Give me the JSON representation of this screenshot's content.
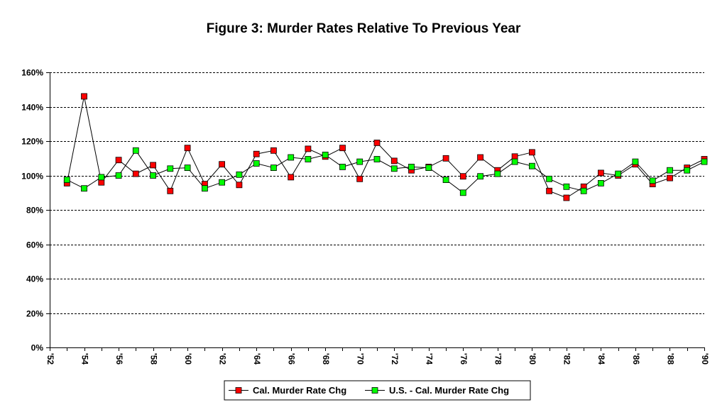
{
  "chart_data": {
    "type": "line",
    "title": "Figure 3: Murder Rates Relative To Previous Year",
    "xlabel": "",
    "ylabel": "",
    "x": [
      1953,
      1954,
      1955,
      1956,
      1957,
      1958,
      1959,
      1960,
      1961,
      1962,
      1963,
      1964,
      1965,
      1966,
      1967,
      1968,
      1969,
      1970,
      1971,
      1972,
      1973,
      1974,
      1975,
      1976,
      1977,
      1978,
      1979,
      1980,
      1981,
      1982,
      1983,
      1984,
      1985,
      1986,
      1987,
      1988,
      1989,
      1990
    ],
    "x_tick_values": [
      1952,
      1954,
      1956,
      1958,
      1960,
      1962,
      1964,
      1966,
      1968,
      1970,
      1972,
      1974,
      1976,
      1978,
      1980,
      1982,
      1984,
      1986,
      1988,
      1990
    ],
    "x_tick_labels": [
      "'52",
      "'54",
      "'56",
      "'58",
      "'60",
      "'62",
      "'64",
      "'66",
      "'68",
      "'70",
      "'72",
      "'74",
      "'76",
      "'78",
      "'80",
      "'82",
      "'84",
      "'86",
      "'88",
      "'90"
    ],
    "xlim": [
      1952,
      1990
    ],
    "ylim": [
      0,
      160
    ],
    "y_ticks": [
      0,
      20,
      40,
      60,
      80,
      100,
      120,
      140,
      160
    ],
    "y_tick_labels": [
      "0%",
      "20%",
      "40%",
      "60%",
      "80%",
      "100%",
      "120%",
      "140%",
      "160%"
    ],
    "grid": "horizontal-dashed",
    "legend_position": "bottom",
    "series": [
      {
        "name": "Cal. Murder Rate Chg",
        "color": "#ff0000",
        "values": [
          95.5,
          146,
          96,
          109,
          101,
          106,
          91,
          116,
          95,
          106.5,
          94.5,
          112.5,
          114.5,
          99,
          115.5,
          111,
          116,
          98,
          119,
          108.5,
          103,
          105,
          110,
          99.5,
          110.5,
          103,
          111,
          113.5,
          91,
          87,
          93.5,
          101.5,
          100,
          106.5,
          95,
          98.5,
          104.5,
          109.5
        ]
      },
      {
        "name": "U.S. - Cal. Murder Rate Chg",
        "color": "#00ff00",
        "values": [
          97.5,
          92.5,
          99,
          100,
          114.5,
          100,
          104,
          104.5,
          92.5,
          96,
          100.5,
          107,
          104.5,
          110.5,
          109.5,
          112,
          105,
          108,
          109.5,
          104,
          105,
          104.5,
          97.5,
          90,
          99.5,
          101,
          108,
          105.5,
          98,
          93.5,
          91,
          95.5,
          101,
          108,
          97,
          103,
          103,
          108
        ]
      }
    ]
  }
}
